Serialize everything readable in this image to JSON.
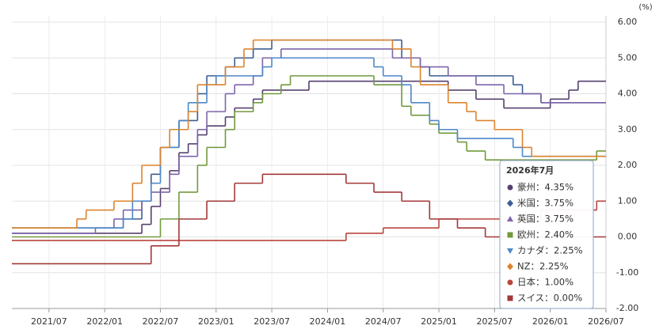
{
  "chart_data": {
    "type": "step-line",
    "unit_label": "(%)",
    "xlim": [
      "2021/03",
      "2026/07"
    ],
    "xticks": [
      "2021/07",
      "2022/01",
      "2022/07",
      "2023/01",
      "2023/07",
      "2024/01",
      "2024/07",
      "2025/01",
      "2025/07",
      "2026/01",
      "2026/07"
    ],
    "ylim": [
      -2,
      6
    ],
    "yticks": [
      {
        "value": 6,
        "label": "6.00"
      },
      {
        "value": 5,
        "label": "5.00"
      },
      {
        "value": 4,
        "label": "4.00"
      },
      {
        "value": 3,
        "label": "3.00"
      },
      {
        "value": 2,
        "label": "2.00"
      },
      {
        "value": 1,
        "label": "1.00"
      },
      {
        "value": 0,
        "label": "0.00"
      },
      {
        "value": -1,
        "label": "-1.00"
      },
      {
        "value": -2,
        "label": "-2.00"
      }
    ],
    "grid": true,
    "series": [
      {
        "color": "#56406f",
        "x": [
          "2021/03",
          "2022/05",
          "2022/06",
          "2022/07",
          "2022/08",
          "2022/09",
          "2022/10",
          "2022/11",
          "2022/12",
          "2023/02",
          "2023/03",
          "2023/05",
          "2023/06",
          "2023/11",
          "2025/02",
          "2025/05",
          "2025/08",
          "2026/01",
          "2026/03",
          "2026/04"
        ],
        "values": [
          0.1,
          0.35,
          0.85,
          1.35,
          1.85,
          2.35,
          2.6,
          2.85,
          3.1,
          3.35,
          3.6,
          3.85,
          4.1,
          4.35,
          4.1,
          3.85,
          3.6,
          3.85,
          4.1,
          4.35
        ]
      },
      {
        "color": "#3c5d92",
        "x": [
          "2021/03",
          "2022/03",
          "2022/05",
          "2022/06",
          "2022/07",
          "2022/09",
          "2022/11",
          "2022/12",
          "2023/02",
          "2023/03",
          "2023/05",
          "2023/07",
          "2024/09",
          "2024/11",
          "2024/12",
          "2025/09",
          "2025/10",
          "2025/12"
        ],
        "values": [
          0.25,
          0.5,
          1.0,
          1.75,
          2.5,
          3.25,
          4.0,
          4.5,
          4.75,
          5.0,
          5.25,
          5.5,
          5.0,
          4.75,
          4.5,
          4.25,
          4.0,
          3.75
        ]
      },
      {
        "color": "#7d64aa",
        "x": [
          "2021/03",
          "2021/12",
          "2022/02",
          "2022/03",
          "2022/05",
          "2022/06",
          "2022/08",
          "2022/09",
          "2022/11",
          "2022/12",
          "2023/02",
          "2023/03",
          "2023/05",
          "2023/06",
          "2023/08",
          "2024/08",
          "2024/11",
          "2025/02",
          "2025/05",
          "2025/08",
          "2025/12"
        ],
        "values": [
          0.1,
          0.25,
          0.5,
          0.75,
          1.0,
          1.25,
          1.75,
          2.25,
          3.0,
          3.5,
          4.0,
          4.25,
          4.5,
          5.0,
          5.25,
          5.0,
          4.75,
          4.5,
          4.25,
          4.0,
          3.75
        ]
      },
      {
        "color": "#72993d",
        "x": [
          "2021/03",
          "2022/07",
          "2022/09",
          "2022/11",
          "2022/12",
          "2023/02",
          "2023/03",
          "2023/05",
          "2023/06",
          "2023/08",
          "2023/09",
          "2024/06",
          "2024/09",
          "2024/10",
          "2024/12",
          "2025/01",
          "2025/03",
          "2025/04",
          "2025/06",
          "2026/06"
        ],
        "values": [
          0.0,
          0.5,
          1.25,
          2.0,
          2.5,
          3.0,
          3.5,
          3.75,
          4.0,
          4.25,
          4.5,
          4.25,
          3.65,
          3.4,
          3.15,
          2.9,
          2.65,
          2.4,
          2.15,
          2.4
        ]
      },
      {
        "color": "#4d88c8",
        "x": [
          "2021/03",
          "2022/03",
          "2022/04",
          "2022/06",
          "2022/07",
          "2022/09",
          "2022/10",
          "2022/12",
          "2023/01",
          "2023/06",
          "2023/07",
          "2024/06",
          "2024/07",
          "2024/09",
          "2024/10",
          "2024/12",
          "2025/01",
          "2025/03",
          "2025/09",
          "2025/10"
        ],
        "values": [
          0.25,
          0.5,
          1.0,
          1.5,
          2.5,
          3.25,
          3.75,
          4.25,
          4.5,
          4.75,
          5.0,
          4.75,
          4.5,
          4.25,
          3.75,
          3.25,
          3.0,
          2.75,
          2.5,
          2.25
        ]
      },
      {
        "color": "#db842e",
        "x": [
          "2021/03",
          "2021/10",
          "2021/11",
          "2022/02",
          "2022/04",
          "2022/05",
          "2022/07",
          "2022/08",
          "2022/10",
          "2022/11",
          "2023/02",
          "2023/04",
          "2023/05",
          "2024/08",
          "2024/10",
          "2024/11",
          "2025/02",
          "2025/04",
          "2025/05",
          "2025/07",
          "2025/10",
          "2025/11"
        ],
        "values": [
          0.25,
          0.5,
          0.75,
          1.0,
          1.5,
          2.0,
          2.5,
          3.0,
          3.5,
          4.25,
          4.75,
          5.25,
          5.5,
          5.25,
          4.75,
          4.25,
          3.75,
          3.5,
          3.25,
          3.0,
          2.5,
          2.25
        ]
      },
      {
        "color": "#b9463d",
        "x": [
          "2021/03",
          "2024/03",
          "2024/07",
          "2025/01",
          "2025/12",
          "2026/06"
        ],
        "values": [
          -0.1,
          0.1,
          0.25,
          0.5,
          0.75,
          1.0
        ]
      },
      {
        "color": "#a33838",
        "x": [
          "2021/03",
          "2022/06",
          "2022/09",
          "2022/12",
          "2023/03",
          "2023/06",
          "2024/03",
          "2024/06",
          "2024/09",
          "2024/12",
          "2025/03",
          "2025/06"
        ],
        "values": [
          -0.75,
          -0.25,
          0.5,
          1.0,
          1.5,
          1.75,
          1.5,
          1.25,
          1.0,
          0.5,
          0.25,
          0.0
        ]
      }
    ],
    "tooltip": {
      "title": "2026年7月",
      "rows": [
        "豪州：4.35%",
        "米国：3.75%",
        "英国：3.75%",
        "欧州：2.40%",
        "カナダ：2.25%",
        "NZ：2.25%",
        "日本：1.00%",
        "スイス：0.00%"
      ]
    }
  }
}
